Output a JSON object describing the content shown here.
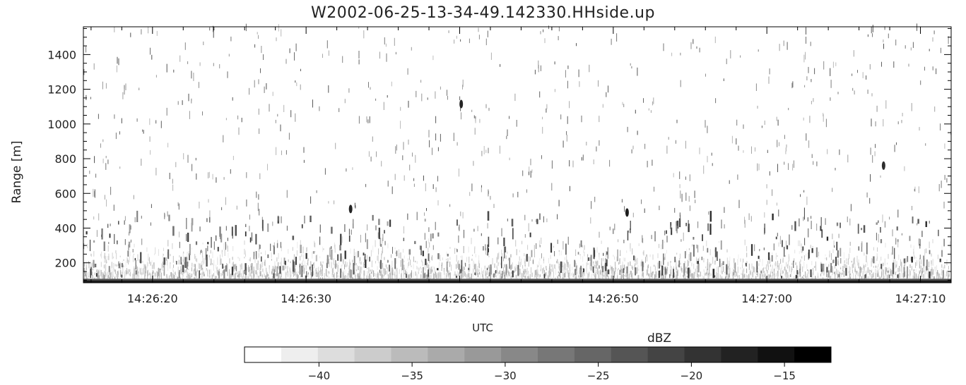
{
  "chart_data": {
    "type": "heatmap",
    "title": "W2002-06-25-13-34-49.142330.HHside.up",
    "xlabel": "UTC",
    "ylabel": "Range [m]",
    "x_ticks": [
      "14:26:20",
      "14:26:30",
      "14:26:40",
      "14:26:50",
      "14:27:00",
      "14:27:10"
    ],
    "x_tick_seconds": [
      20,
      30,
      40,
      50,
      60,
      70
    ],
    "xlim_seconds": [
      15.5,
      72.0
    ],
    "y_ticks": [
      200,
      400,
      600,
      800,
      1000,
      1200,
      1400
    ],
    "ylim": [
      85,
      1560
    ],
    "colorbar": {
      "label": "dBZ",
      "ticks": [
        -40,
        -35,
        -30,
        -25,
        -20,
        -15
      ],
      "range": [
        -44,
        -12.5
      ],
      "colormap": "greys"
    },
    "features": [
      {
        "time_s": 40.1,
        "range_m": 1115,
        "dbz": -17
      },
      {
        "time_s": 67.6,
        "range_m": 760,
        "dbz": -18
      },
      {
        "time_s": 32.9,
        "range_m": 510,
        "dbz": -17
      },
      {
        "time_s": 50.9,
        "range_m": 490,
        "dbz": -16
      }
    ],
    "grid": false
  },
  "colors": {
    "background": "#ffffff",
    "axes": "#000000",
    "low": "#ffffff",
    "high": "#000000"
  }
}
